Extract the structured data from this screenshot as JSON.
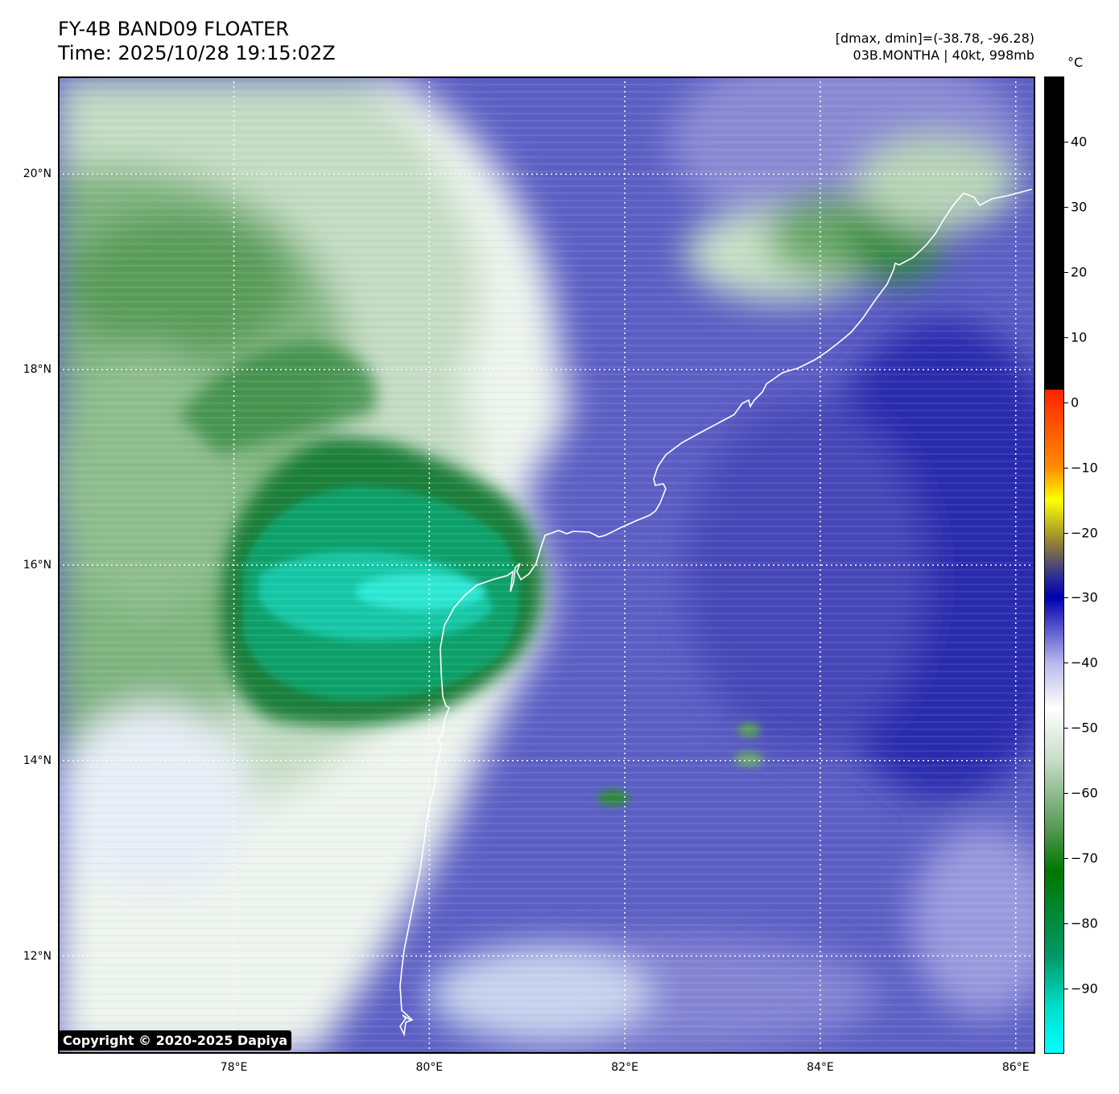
{
  "header": {
    "title": "FY-4B BAND09 FLOATER",
    "time": "Time: 2025/10/28 19:15:02Z",
    "range": "[dmax, dmin]=(-38.78, -96.28)",
    "storm": "03B.MONTHA | 40kt, 998mb"
  },
  "map": {
    "lon_range": [
      76.2,
      86.2
    ],
    "lat_range": [
      11.0,
      21.0
    ],
    "lat_labels": [
      {
        "value": 20,
        "label": "20°N"
      },
      {
        "value": 18,
        "label": "18°N"
      },
      {
        "value": 16,
        "label": "16°N"
      },
      {
        "value": 14,
        "label": "14°N"
      },
      {
        "value": 12,
        "label": "12°N"
      }
    ],
    "lon_labels": [
      {
        "value": 78,
        "label": "78°E"
      },
      {
        "value": 80,
        "label": "80°E"
      },
      {
        "value": 82,
        "label": "82°E"
      },
      {
        "value": 84,
        "label": "84°E"
      },
      {
        "value": 86,
        "label": "86°E"
      }
    ],
    "gridline_color": "#ffffff",
    "coastline_color": "#ffffff"
  },
  "colorbar": {
    "unit": "°C",
    "ticks": [
      {
        "value": 40,
        "label": "40"
      },
      {
        "value": 30,
        "label": "30"
      },
      {
        "value": 20,
        "label": "20"
      },
      {
        "value": 10,
        "label": "10"
      },
      {
        "value": 0,
        "label": "0"
      },
      {
        "value": -10,
        "label": "−10"
      },
      {
        "value": -20,
        "label": "−20"
      },
      {
        "value": -30,
        "label": "−30"
      },
      {
        "value": -40,
        "label": "−40"
      },
      {
        "value": -50,
        "label": "−50"
      },
      {
        "value": -60,
        "label": "−60"
      },
      {
        "value": -70,
        "label": "−70"
      },
      {
        "value": -80,
        "label": "−80"
      },
      {
        "value": -90,
        "label": "−90"
      }
    ],
    "range": [
      -100,
      50
    ]
  },
  "copyright": "Copyright © 2020-2025 Dapiya"
}
